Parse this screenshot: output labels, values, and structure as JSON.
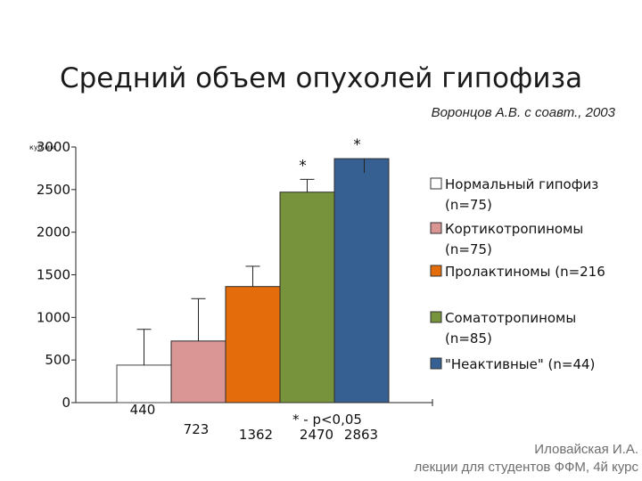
{
  "header": {
    "title": "Средний объем опухолей гипофиза",
    "subtitle": "Воронцов А.В. с соавт., 2003"
  },
  "footer": {
    "credit_line1": "Иловайская И.А.",
    "credit_line2": "лекции для студентов ФФМ, 4й курс"
  },
  "chart_data": {
    "type": "bar",
    "ylabel": "куб.мм",
    "ylim": [
      0,
      3000
    ],
    "yticks": [
      0,
      500,
      1000,
      1500,
      2000,
      2500,
      3000
    ],
    "tick_labels": [
      "0",
      "500",
      "1000",
      "1500",
      "2000",
      "2500",
      "3000"
    ],
    "grid": false,
    "legend_position": "right",
    "significance_note": "* - p<0,05",
    "series": [
      {
        "name": "Нормальный гипофиз (n=75)",
        "value": 440,
        "value_label": "440",
        "error_top": 860,
        "color": "#ffffff",
        "marker": ""
      },
      {
        "name": "Кортикотропиномы (n=75)",
        "value": 723,
        "value_label": "723",
        "error_top": 1220,
        "color": "#d99694",
        "marker": ""
      },
      {
        "name": "Пролактиномы (n=216)",
        "value": 1362,
        "value_label": "1362",
        "error_top": 1600,
        "color": "#e46c0a",
        "marker": ""
      },
      {
        "name": "Соматотропиномы (n=85)",
        "value": 2470,
        "value_label": "2470",
        "error_top": 2620,
        "color": "#77933c",
        "marker": "*"
      },
      {
        "name": "\"Неактивные\" (n=44)",
        "value": 2863,
        "value_label": "2863",
        "error_top": 2863,
        "color": "#376092",
        "marker": "*"
      }
    ],
    "legend": [
      {
        "line1": "Нормальный гипофиз",
        "line2": "(n=75)"
      },
      {
        "line1": "Кортикотропиномы",
        "line2": "(n=75)"
      },
      {
        "line1": "Пролактиномы (n=216",
        "line2": ""
      },
      {
        "line1": "Соматотропиномы",
        "line2": "(n=85)"
      },
      {
        "line1": "\"Неактивные\" (n=44)",
        "line2": ""
      }
    ]
  }
}
